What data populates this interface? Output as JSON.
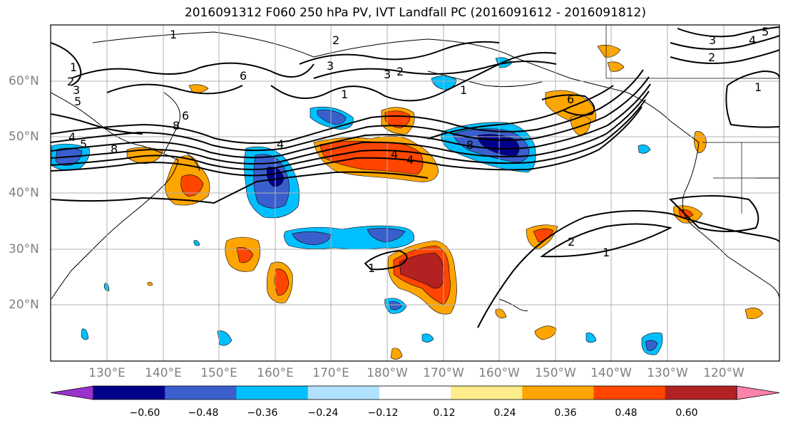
{
  "title": "2016091312 F060 250 hPa PV, IVT Landfall PC (2016091612 - 2016091812)",
  "latitude_labels": [
    "60°N",
    "50°N",
    "40°N",
    "30°N",
    "20°N"
  ],
  "longitude_labels": [
    "130°E",
    "140°E",
    "150°E",
    "160°E",
    "170°E",
    "180°W",
    "170°W",
    "160°W",
    "150°W",
    "140°W",
    "130°W",
    "120°W"
  ],
  "colorbar": {
    "ticks": [
      "−0.60",
      "−0.48",
      "−0.36",
      "−0.24",
      "−0.12",
      "0.12",
      "0.24",
      "0.36",
      "0.48",
      "0.60"
    ],
    "colors": [
      "#9932cc",
      "#00008b",
      "#3a5fcd",
      "#00bfff",
      "#b0e2ff",
      "#ffffff",
      "#ffec8b",
      "#ffa500",
      "#ff4500",
      "#b22222",
      "#ff82ab"
    ]
  },
  "contour_labels": [
    "1",
    "2",
    "3",
    "5",
    "4",
    "5",
    "6",
    "4",
    "8",
    "3",
    "2",
    "1",
    "3",
    "2",
    "1",
    "4",
    "6",
    "4",
    "8",
    "2",
    "1",
    "1",
    "1",
    "2",
    "3",
    "4",
    "5",
    "1",
    "6",
    "8"
  ],
  "colors": {
    "frame": "#000000",
    "grid": "#b0b0b0",
    "contour": "#000000",
    "tick_label": "#808080"
  }
}
